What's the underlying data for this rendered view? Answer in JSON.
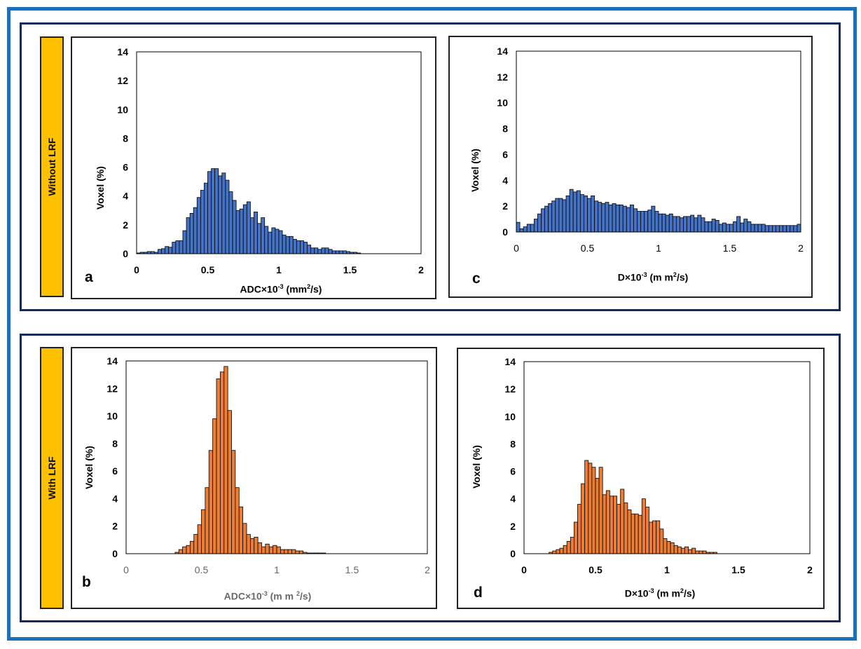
{
  "rows": [
    {
      "label": "Without LRF"
    },
    {
      "label": "With LRF"
    }
  ],
  "colors": {
    "blue": "#4472c4",
    "orange": "#ed7d31",
    "frame": "#1f6fb8",
    "row_frame": "#102a5c",
    "row_label": "#ffc000"
  },
  "chart_data": [
    {
      "id": "a",
      "type": "bar",
      "panel_letter": "a",
      "ylabel": "Voxel (%)",
      "xlabel_main": "ADC×10",
      "xlabel_exp": "-3",
      "xlabel_unit": " (mm",
      "xlabel_unit_exp": "2",
      "xlabel_tail": "/s)",
      "xlim": [
        0,
        2
      ],
      "ylim": [
        0,
        14
      ],
      "xticks": [
        "0",
        "0.5",
        "1",
        "1.5",
        "2"
      ],
      "yticks": [
        "0",
        "2",
        "4",
        "6",
        "8",
        "10",
        "12",
        "14"
      ],
      "bin_start": -0.025,
      "bin_width": 0.025,
      "values": [
        0.2,
        0.05,
        0.1,
        0.1,
        0.15,
        0.15,
        0.1,
        0.3,
        0.35,
        0.5,
        0.45,
        0.8,
        0.9,
        0.9,
        1.6,
        2.5,
        2.8,
        3.2,
        3.9,
        4.4,
        4.9,
        5.7,
        5.9,
        5.9,
        5.4,
        5.6,
        5.1,
        4.3,
        3.7,
        3.0,
        3.1,
        3.4,
        3.6,
        2.5,
        2.9,
        2.1,
        2.5,
        1.9,
        1.5,
        1.8,
        1.7,
        1.6,
        1.3,
        1.2,
        1.2,
        1.0,
        0.9,
        0.9,
        0.8,
        0.6,
        0.4,
        0.4,
        0.3,
        0.4,
        0.4,
        0.3,
        0.2,
        0.2,
        0.2,
        0.2,
        0.15,
        0.1,
        0.1,
        0.05
      ],
      "color": "#4472c4"
    },
    {
      "id": "b",
      "type": "bar",
      "panel_letter": "b",
      "ylabel": "Voxel (%)",
      "xlabel_main": "ADC×10",
      "xlabel_exp": "-3",
      "xlabel_unit": " (m m ",
      "xlabel_unit_exp": "2",
      "xlabel_tail": "/s)",
      "xlim": [
        0,
        2
      ],
      "ylim": [
        0,
        14
      ],
      "xticks": [
        "0",
        "0.5",
        "1",
        "1.5",
        "2"
      ],
      "yticks": [
        "0",
        "2",
        "4",
        "6",
        "8",
        "10",
        "12",
        "14"
      ],
      "bin_start": 0.325,
      "bin_width": 0.025,
      "values": [
        0.1,
        0.3,
        0.5,
        0.6,
        0.9,
        1.4,
        2.1,
        3.2,
        4.8,
        7.5,
        9.8,
        12.7,
        13.2,
        13.6,
        10.4,
        7.5,
        4.8,
        3.4,
        2.2,
        1.4,
        1.1,
        1.2,
        0.8,
        0.5,
        0.7,
        0.5,
        0.6,
        0.5,
        0.3,
        0.3,
        0.3,
        0.3,
        0.2,
        0.2,
        0.1,
        0.05,
        0.05,
        0.05,
        0.05,
        0.05
      ],
      "color": "#ed7d31"
    },
    {
      "id": "c",
      "type": "bar",
      "panel_letter": "c",
      "ylabel": "Voxel (%)",
      "xlabel_main": "D×10",
      "xlabel_exp": "-3",
      "xlabel_unit": " (m m",
      "xlabel_unit_exp": "2",
      "xlabel_tail": "/s)",
      "xlim": [
        0,
        2
      ],
      "ylim": [
        0,
        14
      ],
      "xticks": [
        "0",
        "0.5",
        "1",
        "1.5",
        "2"
      ],
      "yticks": [
        "0",
        "2",
        "4",
        "6",
        "8",
        "10",
        "12",
        "14"
      ],
      "bin_start": 0.0,
      "bin_width": 0.025,
      "values": [
        0.75,
        0.25,
        0.4,
        0.6,
        0.6,
        1.0,
        1.4,
        1.8,
        2.0,
        2.2,
        2.4,
        2.6,
        2.6,
        2.5,
        2.8,
        3.3,
        3.1,
        3.2,
        2.9,
        2.8,
        2.6,
        2.8,
        2.4,
        2.3,
        2.2,
        2.3,
        2.1,
        2.2,
        2.1,
        2.1,
        2.0,
        1.9,
        2.1,
        1.8,
        1.6,
        1.6,
        1.6,
        1.7,
        2.0,
        1.6,
        1.4,
        1.4,
        1.3,
        1.4,
        1.2,
        1.2,
        1.1,
        1.2,
        1.2,
        1.3,
        1.1,
        1.3,
        1.1,
        0.8,
        0.8,
        1.0,
        0.9,
        0.6,
        0.7,
        0.6,
        0.6,
        0.8,
        1.2,
        0.7,
        1.0,
        0.8,
        0.6,
        0.6,
        0.6,
        0.6,
        0.5,
        0.5,
        0.5,
        0.5,
        0.5,
        0.5,
        0.5,
        0.5,
        0.5,
        0.6
      ],
      "color": "#4472c4"
    },
    {
      "id": "d",
      "type": "bar",
      "panel_letter": "d",
      "ylabel": "Voxel (%)",
      "xlabel_main": "D×10",
      "xlabel_exp": "-3",
      "xlabel_unit": " (m m",
      "xlabel_unit_exp": "2",
      "xlabel_tail": "/s)",
      "xlim": [
        0,
        2
      ],
      "ylim": [
        0,
        14
      ],
      "xticks": [
        "0",
        "0.5",
        "1",
        "1.5",
        "2"
      ],
      "yticks": [
        "0",
        "2",
        "4",
        "6",
        "8",
        "10",
        "12",
        "14"
      ],
      "bin_start": -0.025,
      "bin_width": 0.025,
      "values": [
        0.05,
        0.0,
        0.0,
        0.0,
        0.0,
        0.0,
        0.0,
        0.0,
        0.1,
        0.2,
        0.3,
        0.4,
        0.6,
        0.9,
        1.2,
        2.3,
        3.6,
        5.1,
        6.8,
        6.6,
        6.3,
        5.5,
        6.3,
        4.3,
        4.6,
        4.2,
        4.2,
        3.6,
        4.7,
        3.7,
        3.2,
        2.9,
        2.9,
        2.8,
        4.0,
        3.4,
        2.3,
        2.4,
        2.4,
        1.8,
        1.1,
        0.9,
        0.8,
        0.6,
        0.5,
        0.4,
        0.5,
        0.3,
        0.4,
        0.2,
        0.2,
        0.2,
        0.1,
        0.1,
        0.1
      ],
      "color": "#ed7d31"
    }
  ]
}
